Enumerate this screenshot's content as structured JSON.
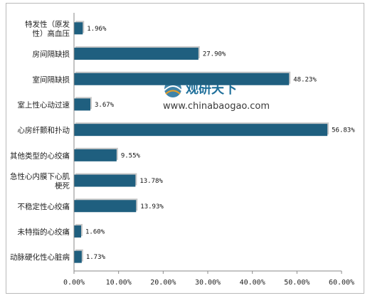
{
  "chart_data": {
    "type": "bar",
    "orientation": "horizontal",
    "categories": [
      "特发性（原发性）高血压",
      "房间隔缺损",
      "室间隔缺损",
      "室上性心动过速",
      "心房纤颤和扑动",
      "其他类型的心绞痛",
      "急性心内膜下心肌梗死",
      "不稳定性心绞痛",
      "未特指的心绞痛",
      "动脉硬化性心脏病"
    ],
    "category_lines": [
      [
        "特发性（原发",
        "性）高血压"
      ],
      [
        "房间隔缺损"
      ],
      [
        "室间隔缺损"
      ],
      [
        "室上性心动过速"
      ],
      [
        "心房纤颤和扑动"
      ],
      [
        "其他类型的心绞痛"
      ],
      [
        "急性心内膜下心肌",
        "梗死"
      ],
      [
        "不稳定性心绞痛"
      ],
      [
        "未特指的心绞痛"
      ],
      [
        "动脉硬化性心脏病"
      ]
    ],
    "values": [
      1.96,
      27.9,
      48.23,
      3.67,
      56.83,
      9.55,
      13.78,
      13.93,
      1.6,
      1.73
    ],
    "value_labels": [
      "1.96%",
      "27.90%",
      "48.23%",
      "3.67%",
      "56.83%",
      "9.55%",
      "13.78%",
      "13.93%",
      "1.60%",
      "1.73%"
    ],
    "xlim": [
      0,
      60
    ],
    "xticks": [
      0,
      10,
      20,
      30,
      40,
      50,
      60
    ],
    "xtick_labels": [
      "0.00%",
      "10.00%",
      "20.00%",
      "30.00%",
      "40.00%",
      "50.00%",
      "60.00%"
    ],
    "bar_color": "#1f5f7f",
    "shadow_color": "#c8c8c8",
    "title": "",
    "xlabel": "",
    "ylabel": "",
    "grid": false,
    "legend": "none"
  },
  "watermark": {
    "name": "观研天下",
    "url": "www.chinabaogao.com",
    "color": "#1e6f9a"
  }
}
